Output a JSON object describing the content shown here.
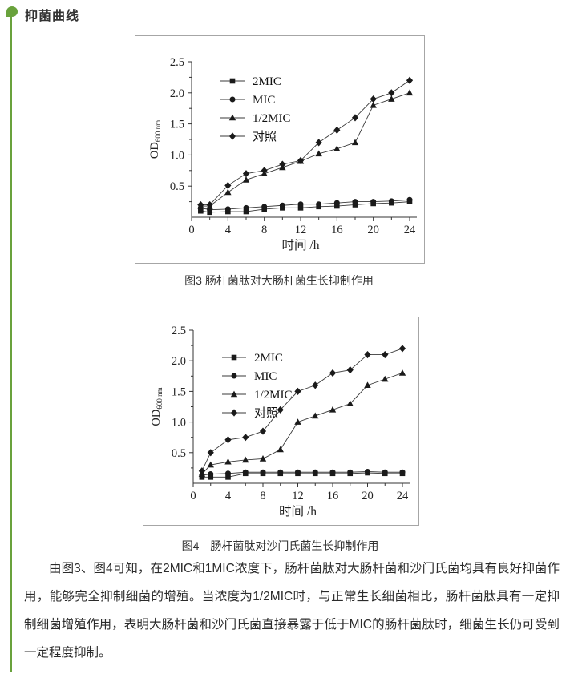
{
  "page": {
    "title": "抑菌曲线",
    "accent_green": "#69a23c",
    "ink": "#1a1a1a"
  },
  "figures": [
    {
      "caption": "图3 肠杆菌肽对大肠杆菌生长抑制作用"
    },
    {
      "caption": "图4　肠杆菌肽对沙门氏菌生长抑制作用"
    }
  ],
  "paragraph": "由图3、图4可知，在2MIC和1MIC浓度下，肠杆菌肽对大肠杆菌和沙门氏菌均具有良好抑菌作用，能够完全抑制细菌的增殖。当浓度为1/2MIC时，与正常生长细菌相比，肠杆菌肽具有一定抑制细菌增殖作用，表明大肠杆菌和沙门氏菌直接暴露于低于MIC的肠杆菌肽时，细菌生长仍可受到一定程度抑制。",
  "chart_data": [
    {
      "type": "line",
      "title": "",
      "xlabel": "时间 /h",
      "ylabel": "OD",
      "ylabel_sub": "600 nm",
      "xlim": [
        0,
        24
      ],
      "ylim": [
        0,
        2.5
      ],
      "xticks": [
        0,
        4,
        8,
        12,
        16,
        20,
        24
      ],
      "xticklabels": [
        "0",
        "4",
        "8",
        "12",
        "16",
        "20",
        "24"
      ],
      "xminor": [
        2,
        6,
        10,
        14,
        18,
        22
      ],
      "yticks": [
        0.5,
        1.0,
        1.5,
        2.0,
        2.5
      ],
      "yticklabels": [
        "0.5",
        "1.0",
        "1.5",
        "2.0",
        "2.5"
      ],
      "yminor": [
        0.25,
        0.75,
        1.25,
        1.75,
        2.25
      ],
      "grid": false,
      "legend_position": "upper-left",
      "x": [
        1,
        2,
        4,
        6,
        8,
        10,
        12,
        14,
        16,
        18,
        20,
        22,
        24
      ],
      "series": [
        {
          "name": "2MIC",
          "marker": "square",
          "values": [
            0.1,
            0.08,
            0.09,
            0.09,
            0.13,
            0.15,
            0.15,
            0.17,
            0.18,
            0.2,
            0.22,
            0.23,
            0.25
          ]
        },
        {
          "name": "MIC",
          "marker": "circle",
          "values": [
            0.15,
            0.12,
            0.13,
            0.15,
            0.17,
            0.19,
            0.21,
            0.21,
            0.23,
            0.25,
            0.25,
            0.26,
            0.28
          ]
        },
        {
          "name": "1/2MIC",
          "marker": "triangle",
          "values": [
            0.18,
            0.18,
            0.4,
            0.6,
            0.7,
            0.8,
            0.9,
            1.02,
            1.1,
            1.2,
            1.8,
            1.9,
            2.0
          ]
        },
        {
          "name": "对照",
          "marker": "diamond",
          "values": [
            0.2,
            0.2,
            0.51,
            0.7,
            0.75,
            0.85,
            0.91,
            1.2,
            1.4,
            1.6,
            1.9,
            2.0,
            2.2
          ]
        }
      ]
    },
    {
      "type": "line",
      "title": "",
      "xlabel": "时间 /h",
      "ylabel": "OD",
      "ylabel_sub": "600 nm",
      "xlim": [
        0,
        24
      ],
      "ylim": [
        0,
        2.5
      ],
      "xticks": [
        0,
        4,
        8,
        12,
        16,
        20,
        24
      ],
      "xticklabels": [
        "0",
        "4",
        "8",
        "12",
        "16",
        "20",
        "24"
      ],
      "xminor": [
        2,
        6,
        10,
        14,
        18,
        22
      ],
      "yticks": [
        0.5,
        1.0,
        1.5,
        2.0,
        2.5
      ],
      "yticklabels": [
        "0.5",
        "1.0",
        "1.5",
        "2.0",
        "2.5"
      ],
      "yminor": [
        0.25,
        0.75,
        1.25,
        1.75,
        2.25
      ],
      "grid": false,
      "legend_position": "upper-left",
      "x": [
        1,
        2,
        4,
        6,
        8,
        10,
        12,
        14,
        16,
        18,
        20,
        22,
        24
      ],
      "series": [
        {
          "name": "2MIC",
          "marker": "square",
          "values": [
            0.1,
            0.1,
            0.1,
            0.16,
            0.16,
            0.16,
            0.16,
            0.16,
            0.16,
            0.16,
            0.17,
            0.16,
            0.16
          ]
        },
        {
          "name": "MIC",
          "marker": "circle",
          "values": [
            0.13,
            0.15,
            0.16,
            0.18,
            0.18,
            0.18,
            0.18,
            0.18,
            0.18,
            0.18,
            0.19,
            0.18,
            0.18
          ]
        },
        {
          "name": "1/2MIC",
          "marker": "triangle",
          "values": [
            0.15,
            0.3,
            0.35,
            0.38,
            0.4,
            0.55,
            1.0,
            1.1,
            1.2,
            1.3,
            1.6,
            1.7,
            1.8
          ]
        },
        {
          "name": "对照",
          "marker": "diamond",
          "values": [
            0.2,
            0.5,
            0.71,
            0.75,
            0.85,
            1.2,
            1.5,
            1.6,
            1.8,
            1.85,
            2.1,
            2.1,
            2.2
          ]
        }
      ]
    }
  ]
}
